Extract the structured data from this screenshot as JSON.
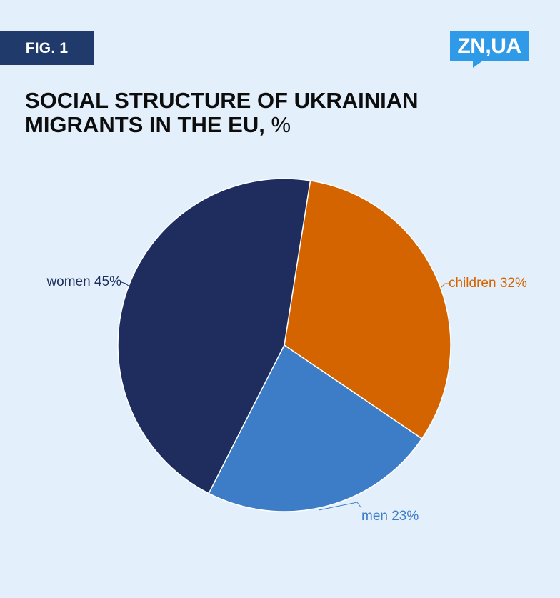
{
  "header": {
    "fig_label": "FIG. 1",
    "logo_text": "ZN,UA"
  },
  "chart_data": {
    "type": "pie",
    "title": "SOCIAL STRUCTURE OF UKRAINIAN MIGRANTS IN THE EU,",
    "title_unit": "%",
    "slices": [
      {
        "label": "children 32%",
        "name": "children",
        "value": 32,
        "color": "#d46400"
      },
      {
        "label": "men 23%",
        "name": "men",
        "value": 23,
        "color": "#3d7dc8"
      },
      {
        "label": "women 45%",
        "name": "women",
        "value": 45,
        "color": "#1e2d5e"
      }
    ],
    "start_angle_deg": 9,
    "direction": "clockwise",
    "slice_border_color": "#ffffff"
  }
}
